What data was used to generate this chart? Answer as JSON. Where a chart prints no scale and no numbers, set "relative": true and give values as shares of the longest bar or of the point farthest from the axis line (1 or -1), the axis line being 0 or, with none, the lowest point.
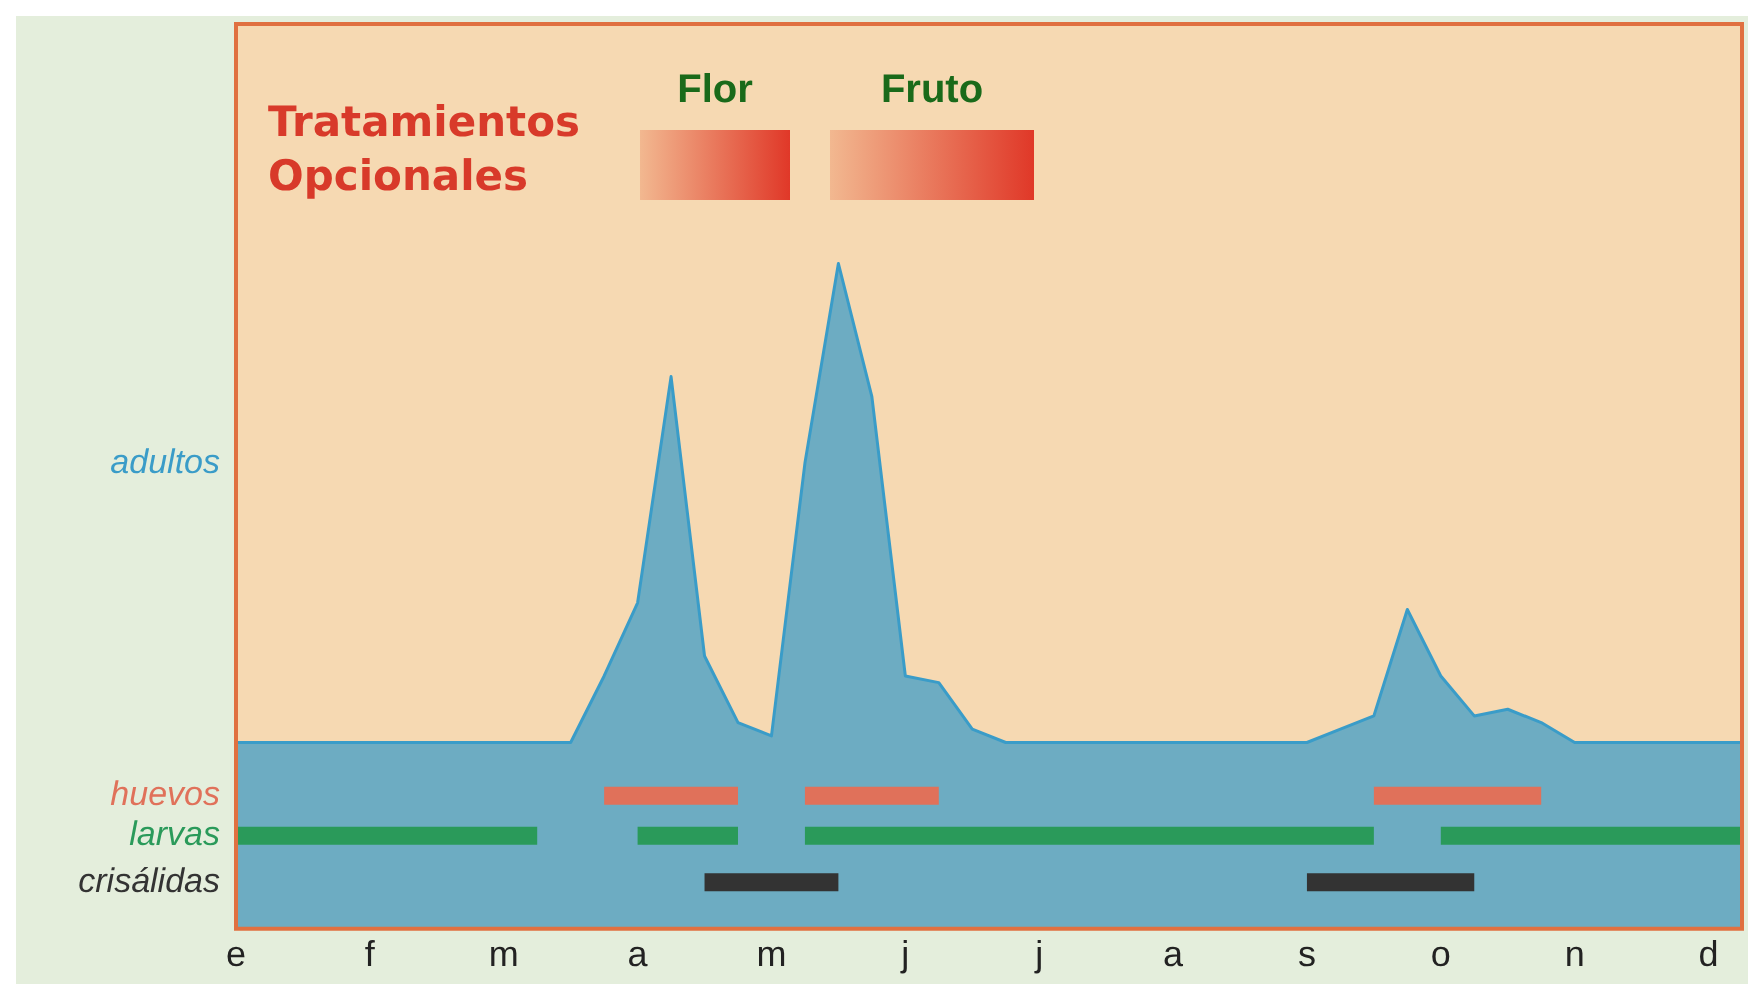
{
  "chart_data": {
    "type": "area",
    "title": "Tratamientos Opcionales",
    "relative": true,
    "categories": [
      "e",
      null,
      null,
      null,
      "f",
      null,
      null,
      null,
      "m",
      null,
      null,
      null,
      "a",
      null,
      null,
      null,
      "m",
      null,
      null,
      null,
      "j",
      null,
      null,
      null,
      "j",
      null,
      null,
      null,
      "a",
      null,
      null,
      null,
      "s",
      null,
      null,
      null,
      "o",
      null,
      null,
      null,
      "n",
      null,
      null,
      null,
      "d",
      null
    ],
    "annotations": [
      "Flor",
      "Fruto"
    ],
    "grid": false,
    "legend": false,
    "marker": "none",
    "series": [
      {
        "name": "adultos",
        "color": "#3a9cc8",
        "values": [
          0.28,
          0.28,
          0.28,
          0.28,
          0.28,
          0.28,
          0.28,
          0.28,
          0.28,
          0.28,
          0.28,
          0.38,
          0.49,
          0.83,
          0.41,
          0.31,
          0.29,
          0.7,
          1,
          0.8,
          0.38,
          0.37,
          0.3,
          0.28,
          0.28,
          0.28,
          0.28,
          0.28,
          0.28,
          0.28,
          0.28,
          0.28,
          0.28,
          0.3,
          0.32,
          0.48,
          0.38,
          0.32,
          0.33,
          0.31,
          0.28,
          0.28,
          0.28,
          0.28,
          0.28,
          0.28
        ]
      },
      {
        "name": "huevos",
        "type": "line",
        "color": "#e0715a",
        "line_style": "solid",
        "values": [
          null,
          null,
          null,
          null,
          null,
          null,
          null,
          null,
          null,
          null,
          null,
          0.2,
          0.2,
          0.2,
          0.2,
          0.2,
          null,
          0.2,
          0.2,
          0.2,
          0.2,
          0.2,
          null,
          null,
          null,
          null,
          null,
          null,
          null,
          null,
          null,
          null,
          null,
          null,
          0.2,
          0.2,
          0.2,
          0.2,
          0.2,
          0.2,
          null,
          null,
          null,
          null,
          null,
          null
        ]
      },
      {
        "name": "larvas",
        "type": "line",
        "color": "#2a9a5a",
        "line_style": "solid",
        "values": [
          0.14,
          0.14,
          0.14,
          0.14,
          0.14,
          0.14,
          0.14,
          0.14,
          0.14,
          0.14,
          null,
          null,
          0.14,
          0.14,
          0.14,
          0.14,
          null,
          0.14,
          0.14,
          0.14,
          0.14,
          0.14,
          0.14,
          0.14,
          0.14,
          0.14,
          0.14,
          0.14,
          0.14,
          0.14,
          0.14,
          0.14,
          0.14,
          0.14,
          0.14,
          null,
          0.14,
          0.14,
          0.14,
          0.14,
          0.14,
          0.14,
          0.14,
          0.14,
          0.14,
          0.14
        ]
      },
      {
        "name": "crisálidas",
        "type": "line",
        "color": "#333333",
        "line_style": "solid",
        "values": [
          null,
          null,
          null,
          null,
          null,
          null,
          null,
          null,
          null,
          null,
          null,
          null,
          null,
          null,
          0.07,
          0.07,
          0.07,
          0.07,
          0.07,
          null,
          null,
          null,
          null,
          null,
          null,
          null,
          null,
          null,
          null,
          null,
          null,
          null,
          0.07,
          0.07,
          0.07,
          0.07,
          0.07,
          0.07,
          null,
          null,
          null,
          null,
          null,
          null,
          null,
          null
        ]
      }
    ]
  }
}
